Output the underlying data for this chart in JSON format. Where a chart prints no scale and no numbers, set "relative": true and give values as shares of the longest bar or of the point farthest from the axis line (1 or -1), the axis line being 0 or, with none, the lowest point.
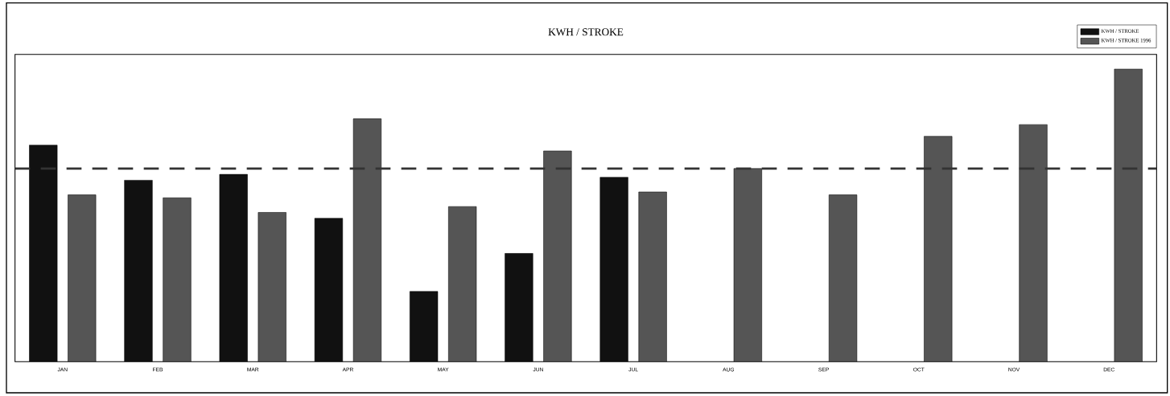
{
  "chart_data": {
    "type": "bar",
    "title": "KWH / STROKE",
    "relative": true,
    "categories": [
      "JAN",
      "FEB",
      "MAR",
      "APR",
      "MAY",
      "JUN",
      "JUL",
      "AUG",
      "SEP",
      "OCT",
      "NOV",
      "DEC"
    ],
    "series": [
      {
        "name": "KWH / STROKE",
        "color": "#111111",
        "values": [
          0.74,
          0.62,
          0.64,
          0.49,
          0.24,
          0.37,
          0.63,
          null,
          null,
          null,
          null,
          null
        ]
      },
      {
        "name": "KWH / STROKE 1996",
        "color": "#555555",
        "values": [
          0.57,
          0.56,
          0.51,
          0.83,
          0.53,
          0.72,
          0.58,
          0.66,
          0.57,
          0.77,
          0.81,
          1.0
        ]
      }
    ],
    "ref_lines": [
      {
        "axis": "y",
        "value": 0.66,
        "color": "#333333",
        "line_style": "dashed"
      }
    ],
    "legend": "top right",
    "grid": false
  }
}
